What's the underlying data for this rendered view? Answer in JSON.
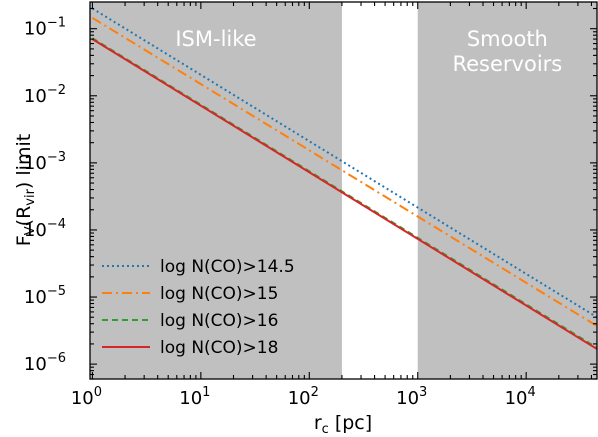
{
  "chart_data": {
    "type": "line",
    "title": "",
    "xlabel": "r_c [pc]",
    "ylabel": "F_V(R_vir) limit",
    "xscale": "log",
    "yscale": "log",
    "xlim": [
      0.95,
      45000
    ],
    "ylim": [
      6e-07,
      0.25
    ],
    "x_ticks": [
      1,
      10,
      100,
      1000,
      10000
    ],
    "y_ticks": [
      1e-06,
      1e-05,
      0.0001,
      0.001,
      0.01,
      0.1
    ],
    "grid": false,
    "legend_position": "lower-left",
    "shaded_regions": [
      {
        "label_lines": [
          "ISM-like"
        ],
        "x_range": [
          0.95,
          200
        ],
        "color": "#c0c0c0"
      },
      {
        "label_lines": [
          "Smooth",
          "Reservoirs"
        ],
        "x_range": [
          1000,
          45000
        ],
        "color": "#c0c0c0"
      }
    ],
    "series": [
      {
        "name": "log N(CO)>14.5",
        "x": [
          1,
          45000
        ],
        "y": [
          0.2,
          5e-06
        ],
        "color": "#1f77b4",
        "dash": "2,3"
      },
      {
        "name": "log N(CO)>15",
        "x": [
          1,
          45000
        ],
        "y": [
          0.145,
          3.7e-06
        ],
        "color": "#ff7f0e",
        "dash": "10,4,2,4"
      },
      {
        "name": "log N(CO)>16",
        "x": [
          1,
          45000
        ],
        "y": [
          0.072,
          1.75e-06
        ],
        "color": "#2ca02c",
        "dash": "6,4"
      },
      {
        "name": "log N(CO)>18",
        "x": [
          1,
          45000
        ],
        "y": [
          0.07,
          1.68e-06
        ],
        "color": "#d62728",
        "dash": ""
      }
    ]
  }
}
